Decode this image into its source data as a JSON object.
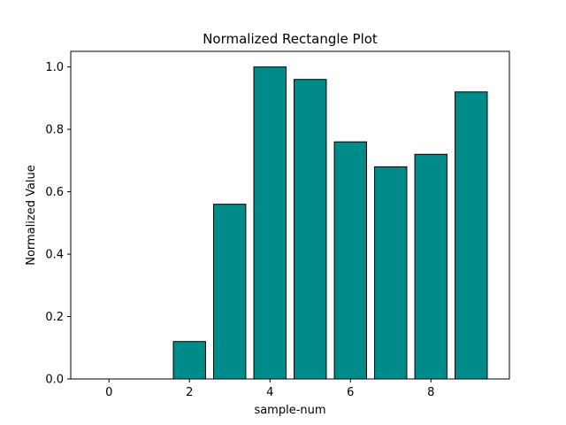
{
  "chart_data": {
    "type": "bar",
    "title": "Normalized Rectangle Plot",
    "xlabel": "sample-num",
    "ylabel": "Normalized Value",
    "x": [
      0,
      1,
      2,
      3,
      4,
      5,
      6,
      7,
      8,
      9
    ],
    "values": [
      0.0,
      0.0,
      0.12,
      0.56,
      1.0,
      0.96,
      0.76,
      0.68,
      0.72,
      0.92
    ],
    "xlim": [
      -0.95,
      9.95
    ],
    "ylim": [
      0,
      1.05
    ],
    "xticks": [
      0,
      2,
      4,
      6,
      8
    ],
    "yticks": [
      0.0,
      0.2,
      0.4,
      0.6,
      0.8,
      1.0
    ],
    "bar_color": "#008b8b",
    "edge_color": "#000000",
    "grid": false,
    "legend": false
  }
}
